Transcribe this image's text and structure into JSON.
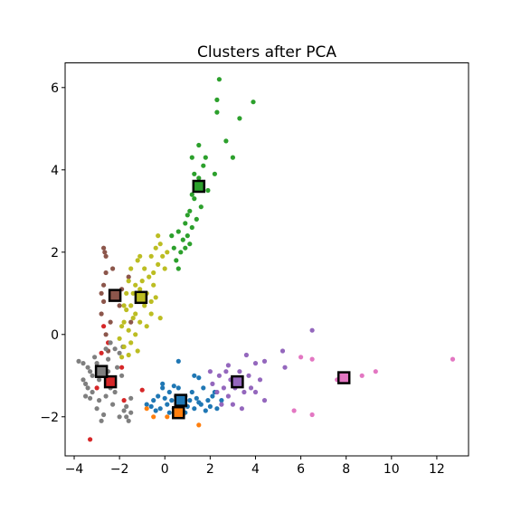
{
  "chart_data": {
    "type": "scatter",
    "title": "Clusters after PCA",
    "xlabel": "",
    "ylabel": "",
    "xlim": [
      -4.4,
      13.4
    ],
    "ylim": [
      -2.95,
      6.6
    ],
    "xticks": [
      -4,
      -2,
      0,
      2,
      4,
      6,
      8,
      10,
      12
    ],
    "yticks": [
      -2,
      0,
      2,
      4,
      6
    ],
    "grid": false,
    "legend": "none",
    "series": [
      {
        "color": "#1f77b4",
        "centroid": [
          0.7,
          -1.6
        ],
        "points": [
          [
            -0.8,
            -1.7
          ],
          [
            -0.6,
            -1.75
          ],
          [
            -0.5,
            -1.6
          ],
          [
            -0.3,
            -1.5
          ],
          [
            -0.1,
            -1.3
          ],
          [
            -0.2,
            -1.8
          ],
          [
            0.0,
            -1.55
          ],
          [
            0.1,
            -1.7
          ],
          [
            0.2,
            -1.4
          ],
          [
            0.3,
            -1.6
          ],
          [
            0.4,
            -1.8
          ],
          [
            0.5,
            -1.5
          ],
          [
            0.6,
            -1.3
          ],
          [
            0.6,
            -0.65
          ],
          [
            0.7,
            -1.85
          ],
          [
            0.8,
            -1.7
          ],
          [
            0.9,
            -1.5
          ],
          [
            1.0,
            -1.75
          ],
          [
            1.1,
            -1.6
          ],
          [
            1.2,
            -1.4
          ],
          [
            1.3,
            -1.8
          ],
          [
            1.4,
            -1.55
          ],
          [
            1.5,
            -1.05
          ],
          [
            1.6,
            -1.7
          ],
          [
            1.7,
            -1.3
          ],
          [
            1.8,
            -1.85
          ],
          [
            1.9,
            -1.6
          ],
          [
            2.0,
            -1.75
          ],
          [
            2.1,
            -1.5
          ],
          [
            2.3,
            -1.8
          ],
          [
            2.5,
            -1.6
          ],
          [
            -0.1,
            -1.2
          ],
          [
            0.4,
            -1.25
          ],
          [
            1.3,
            -1.0
          ],
          [
            0.2,
            -1.9
          ],
          [
            -0.4,
            -1.85
          ],
          [
            0.9,
            -1.9
          ],
          [
            1.5,
            -1.65
          ],
          [
            2.2,
            -1.4
          ]
        ]
      },
      {
        "color": "#ff7f0e",
        "centroid": [
          0.6,
          -1.9
        ],
        "points": [
          [
            -0.5,
            -2.0
          ],
          [
            0.1,
            -2.0
          ],
          [
            0.4,
            -1.9
          ],
          [
            0.8,
            -1.95
          ],
          [
            1.5,
            -2.2
          ],
          [
            -0.8,
            -1.8
          ]
        ]
      },
      {
        "color": "#2ca02c",
        "centroid": [
          1.5,
          3.6
        ],
        "points": [
          [
            0.3,
            2.4
          ],
          [
            0.4,
            2.1
          ],
          [
            0.5,
            1.8
          ],
          [
            0.6,
            2.5
          ],
          [
            0.7,
            2.0
          ],
          [
            0.8,
            2.3
          ],
          [
            0.9,
            2.7
          ],
          [
            0.9,
            2.1
          ],
          [
            1.0,
            2.9
          ],
          [
            1.0,
            2.4
          ],
          [
            1.1,
            3.0
          ],
          [
            1.2,
            2.6
          ],
          [
            1.2,
            3.4
          ],
          [
            1.3,
            3.3
          ],
          [
            1.4,
            2.8
          ],
          [
            1.5,
            3.8
          ],
          [
            1.6,
            3.1
          ],
          [
            1.7,
            4.1
          ],
          [
            1.8,
            4.3
          ],
          [
            1.9,
            3.5
          ],
          [
            1.3,
            3.9
          ],
          [
            1.2,
            4.3
          ],
          [
            1.5,
            4.6
          ],
          [
            2.2,
            3.9
          ],
          [
            2.3,
            5.4
          ],
          [
            2.3,
            5.7
          ],
          [
            2.4,
            6.2
          ],
          [
            2.7,
            4.7
          ],
          [
            3.0,
            4.3
          ],
          [
            3.3,
            5.25
          ],
          [
            3.9,
            5.65
          ],
          [
            1.1,
            2.2
          ],
          [
            0.6,
            1.6
          ]
        ]
      },
      {
        "color": "#d62728",
        "centroid": [
          -2.4,
          -1.15
        ],
        "points": [
          [
            -3.3,
            -2.55
          ],
          [
            -3.0,
            -1.3
          ],
          [
            -2.8,
            -0.45
          ],
          [
            -2.6,
            -1.0
          ],
          [
            -2.5,
            -0.2
          ],
          [
            -1.8,
            -1.6
          ],
          [
            -1.0,
            -1.35
          ],
          [
            -2.7,
            0.2
          ],
          [
            -1.9,
            -0.8
          ]
        ]
      },
      {
        "color": "#9467bd",
        "centroid": [
          3.2,
          -1.15
        ],
        "points": [
          [
            2.1,
            -1.2
          ],
          [
            2.3,
            -1.4
          ],
          [
            2.4,
            -1.0
          ],
          [
            2.6,
            -1.3
          ],
          [
            2.7,
            -0.9
          ],
          [
            2.8,
            -1.5
          ],
          [
            2.9,
            -1.1
          ],
          [
            3.0,
            -1.7
          ],
          [
            3.1,
            -1.3
          ],
          [
            3.3,
            -0.9
          ],
          [
            3.5,
            -1.4
          ],
          [
            3.6,
            -0.5
          ],
          [
            3.7,
            -1.0
          ],
          [
            3.8,
            -1.3
          ],
          [
            4.0,
            -0.7
          ],
          [
            4.2,
            -1.1
          ],
          [
            4.4,
            -0.65
          ],
          [
            4.4,
            -1.6
          ],
          [
            5.2,
            -0.4
          ],
          [
            5.3,
            -0.8
          ],
          [
            6.5,
            0.1
          ],
          [
            2.5,
            -1.7
          ],
          [
            3.4,
            -1.8
          ],
          [
            2.0,
            -0.9
          ],
          [
            4.0,
            -1.4
          ],
          [
            2.8,
            -0.75
          ]
        ]
      },
      {
        "color": "#8c564b",
        "centroid": [
          -2.2,
          0.95
        ],
        "points": [
          [
            -2.7,
            2.1
          ],
          [
            -2.65,
            2.0
          ],
          [
            -2.6,
            1.9
          ],
          [
            -2.6,
            1.5
          ],
          [
            -2.7,
            1.2
          ],
          [
            -2.8,
            1.0
          ],
          [
            -2.7,
            0.8
          ],
          [
            -2.8,
            0.5
          ],
          [
            -2.6,
            0.0
          ],
          [
            -2.5,
            -0.4
          ],
          [
            -2.0,
            0.7
          ],
          [
            -1.9,
            1.1
          ],
          [
            -1.6,
            1.4
          ],
          [
            -1.5,
            0.3
          ],
          [
            -2.3,
            1.6
          ],
          [
            -2.4,
            0.3
          ]
        ]
      },
      {
        "color": "#e377c2",
        "centroid": [
          7.9,
          -1.05
        ],
        "points": [
          [
            5.7,
            -1.85
          ],
          [
            6.0,
            -0.55
          ],
          [
            6.5,
            -0.6
          ],
          [
            6.5,
            -1.95
          ],
          [
            8.7,
            -1.0
          ],
          [
            9.3,
            -0.9
          ],
          [
            12.7,
            -0.6
          ],
          [
            7.6,
            -1.1
          ]
        ]
      },
      {
        "color": "#7f7f7f",
        "centroid": [
          -2.8,
          -0.9
        ],
        "points": [
          [
            -3.8,
            -0.65
          ],
          [
            -3.6,
            -0.7
          ],
          [
            -3.6,
            -1.1
          ],
          [
            -3.5,
            -1.5
          ],
          [
            -3.5,
            -1.2
          ],
          [
            -3.4,
            -0.8
          ],
          [
            -3.4,
            -1.3
          ],
          [
            -3.3,
            -0.9
          ],
          [
            -3.3,
            -1.55
          ],
          [
            -3.2,
            -1.4
          ],
          [
            -3.2,
            -1.0
          ],
          [
            -3.1,
            -0.55
          ],
          [
            -3.0,
            -1.8
          ],
          [
            -2.9,
            -1.6
          ],
          [
            -2.8,
            -2.1
          ],
          [
            -2.7,
            -1.95
          ],
          [
            -2.6,
            -1.5
          ],
          [
            -2.6,
            -0.35
          ],
          [
            -2.5,
            -0.6
          ],
          [
            -2.5,
            -0.9
          ],
          [
            -2.4,
            -1.3
          ],
          [
            -2.3,
            -1.7
          ],
          [
            -2.2,
            -1.4
          ],
          [
            -2.1,
            -0.8
          ],
          [
            -2.0,
            -2.0
          ],
          [
            -1.9,
            -1.0
          ],
          [
            -1.8,
            -1.85
          ],
          [
            -1.7,
            -1.75
          ],
          [
            -1.6,
            -2.1
          ],
          [
            -1.5,
            -1.9
          ],
          [
            -2.2,
            -0.35
          ],
          [
            -2.0,
            -0.45
          ],
          [
            -1.85,
            -0.3
          ],
          [
            -1.5,
            -1.55
          ],
          [
            -2.9,
            -1.1
          ],
          [
            -3.0,
            -0.7
          ],
          [
            -2.7,
            -0.8
          ],
          [
            -2.4,
            -0.2
          ],
          [
            -1.7,
            -2.0
          ]
        ]
      },
      {
        "color": "#bcbd22",
        "centroid": [
          -1.05,
          0.9
        ],
        "points": [
          [
            -2.0,
            -0.1
          ],
          [
            -1.9,
            0.2
          ],
          [
            -1.8,
            0.3
          ],
          [
            -1.8,
            -0.3
          ],
          [
            -1.7,
            0.6
          ],
          [
            -1.6,
            0.1
          ],
          [
            -1.5,
            0.7
          ],
          [
            -1.5,
            -0.2
          ],
          [
            -1.4,
            1.0
          ],
          [
            -1.4,
            0.4
          ],
          [
            -1.3,
            1.2
          ],
          [
            -1.3,
            0.5
          ],
          [
            -1.2,
            0.8
          ],
          [
            -1.2,
            -0.4
          ],
          [
            -1.1,
            1.1
          ],
          [
            -1.1,
            0.3
          ],
          [
            -1.0,
            1.3
          ],
          [
            -0.9,
            0.7
          ],
          [
            -0.9,
            1.6
          ],
          [
            -0.8,
            0.2
          ],
          [
            -0.7,
            1.4
          ],
          [
            -0.6,
            1.9
          ],
          [
            -0.6,
            0.5
          ],
          [
            -0.5,
            1.5
          ],
          [
            -0.4,
            2.1
          ],
          [
            -0.4,
            0.9
          ],
          [
            -0.3,
            2.4
          ],
          [
            -0.3,
            1.7
          ],
          [
            -0.2,
            2.2
          ],
          [
            -0.2,
            0.4
          ],
          [
            -0.1,
            1.9
          ],
          [
            0.0,
            1.6
          ],
          [
            0.1,
            2.0
          ],
          [
            -1.7,
            1.0
          ],
          [
            -1.6,
            1.3
          ],
          [
            -1.5,
            1.6
          ],
          [
            -1.8,
            0.7
          ],
          [
            -1.1,
            1.9
          ],
          [
            -1.2,
            1.8
          ],
          [
            -0.8,
            1.0
          ],
          [
            -0.5,
            1.2
          ],
          [
            -1.3,
            0.0
          ],
          [
            -1.6,
            -0.5
          ],
          [
            -1.9,
            -0.55
          ],
          [
            -0.6,
            0.8
          ]
        ]
      }
    ]
  }
}
